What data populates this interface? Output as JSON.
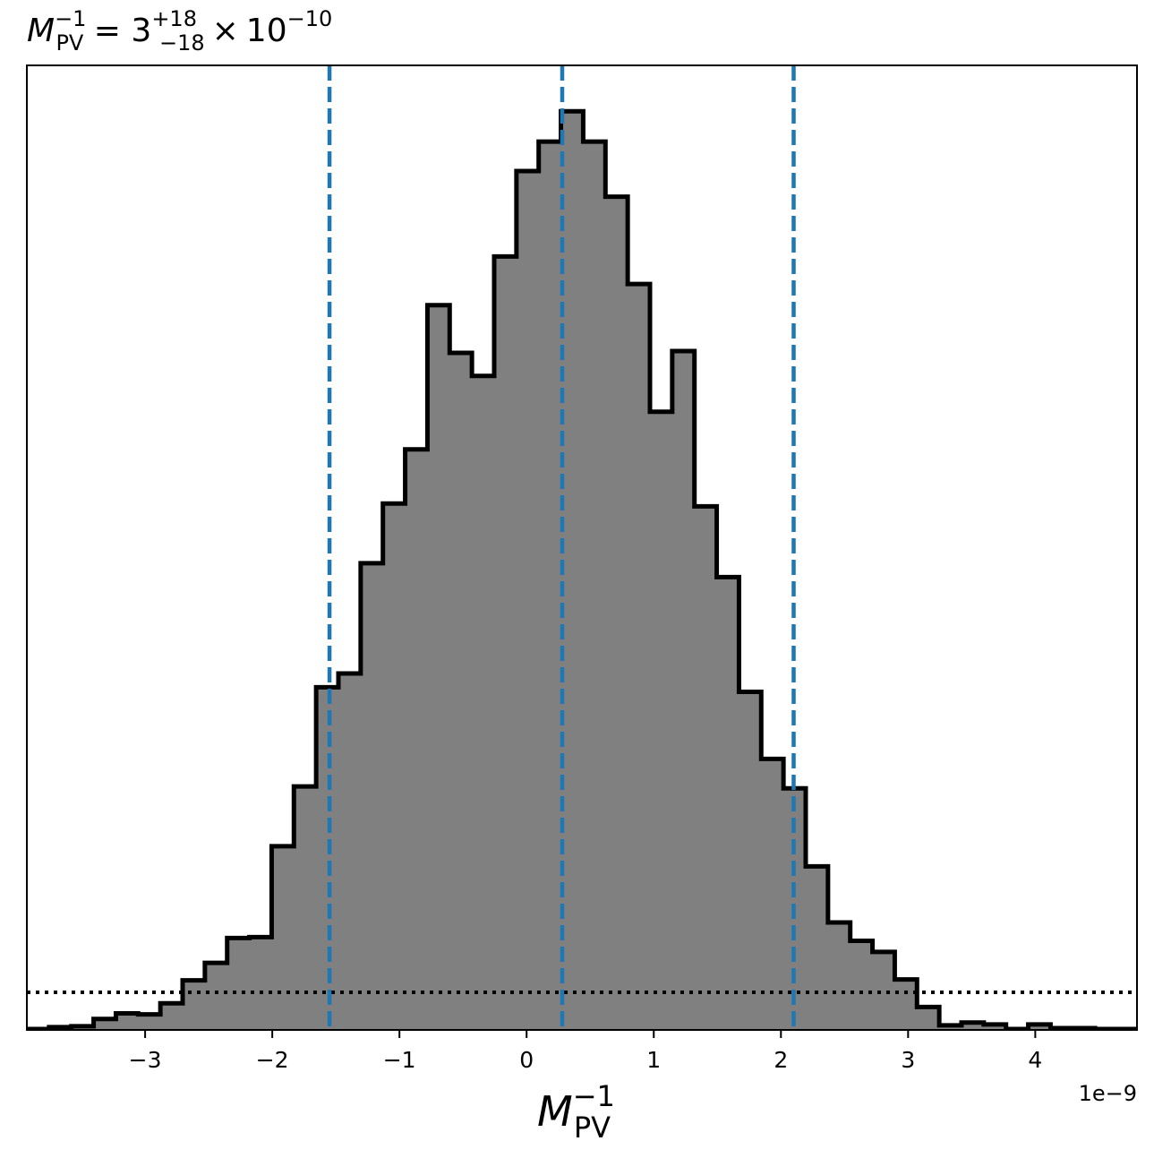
{
  "chart_data": {
    "type": "bar",
    "histtype": "step-filled",
    "title": {
      "symbol": "M",
      "sup": "−1",
      "sub": "PV",
      "equals": " = ",
      "value": "3",
      "err_plus": "+18",
      "err_minus": "−18",
      "times": "×",
      "base": "10",
      "exponent": "−10"
    },
    "xlabel": {
      "symbol": "M",
      "sup": "−1",
      "sub": "PV"
    },
    "x_offset_label": "1e−9",
    "x_scale": 1e-09,
    "xlim": [
      -3.93,
      4.8
    ],
    "ylim": [
      0,
      1.05
    ],
    "y_ticks_visible": false,
    "grid": false,
    "x_ticks": [
      {
        "value": -3,
        "label": "−3"
      },
      {
        "value": -2,
        "label": "−2"
      },
      {
        "value": -1,
        "label": "−1"
      },
      {
        "value": 0,
        "label": "0"
      },
      {
        "value": 1,
        "label": "1"
      },
      {
        "value": 2,
        "label": "2"
      },
      {
        "value": 3,
        "label": "3"
      },
      {
        "value": 4,
        "label": "4"
      }
    ],
    "bin_width": 0.175,
    "bin_start": -3.93,
    "values": [
      0.001,
      0.003,
      0.004,
      0.012,
      0.018,
      0.017,
      0.029,
      0.054,
      0.073,
      0.1,
      0.101,
      0.2,
      0.265,
      0.373,
      0.388,
      0.508,
      0.573,
      0.632,
      0.789,
      0.737,
      0.712,
      0.842,
      0.935,
      0.967,
      1.0,
      0.967,
      0.907,
      0.812,
      0.673,
      0.739,
      0.57,
      0.493,
      0.368,
      0.295,
      0.263,
      0.178,
      0.117,
      0.097,
      0.085,
      0.055,
      0.025,
      0.005,
      0.008,
      0.006,
      0.001,
      0.006,
      0.002,
      0.002,
      0.001,
      0.001
    ],
    "vlines": [
      {
        "x": -1.55,
        "style": "dashed",
        "color": "#1f77b4"
      },
      {
        "x": 0.28,
        "style": "dashed",
        "color": "#1f77b4"
      },
      {
        "x": 2.1,
        "style": "dashed",
        "color": "#1f77b4"
      }
    ],
    "hline": {
      "y": 0.041,
      "style": "dotted",
      "color": "#000000"
    },
    "fill_color": "#808080",
    "edge_color": "#000000"
  }
}
